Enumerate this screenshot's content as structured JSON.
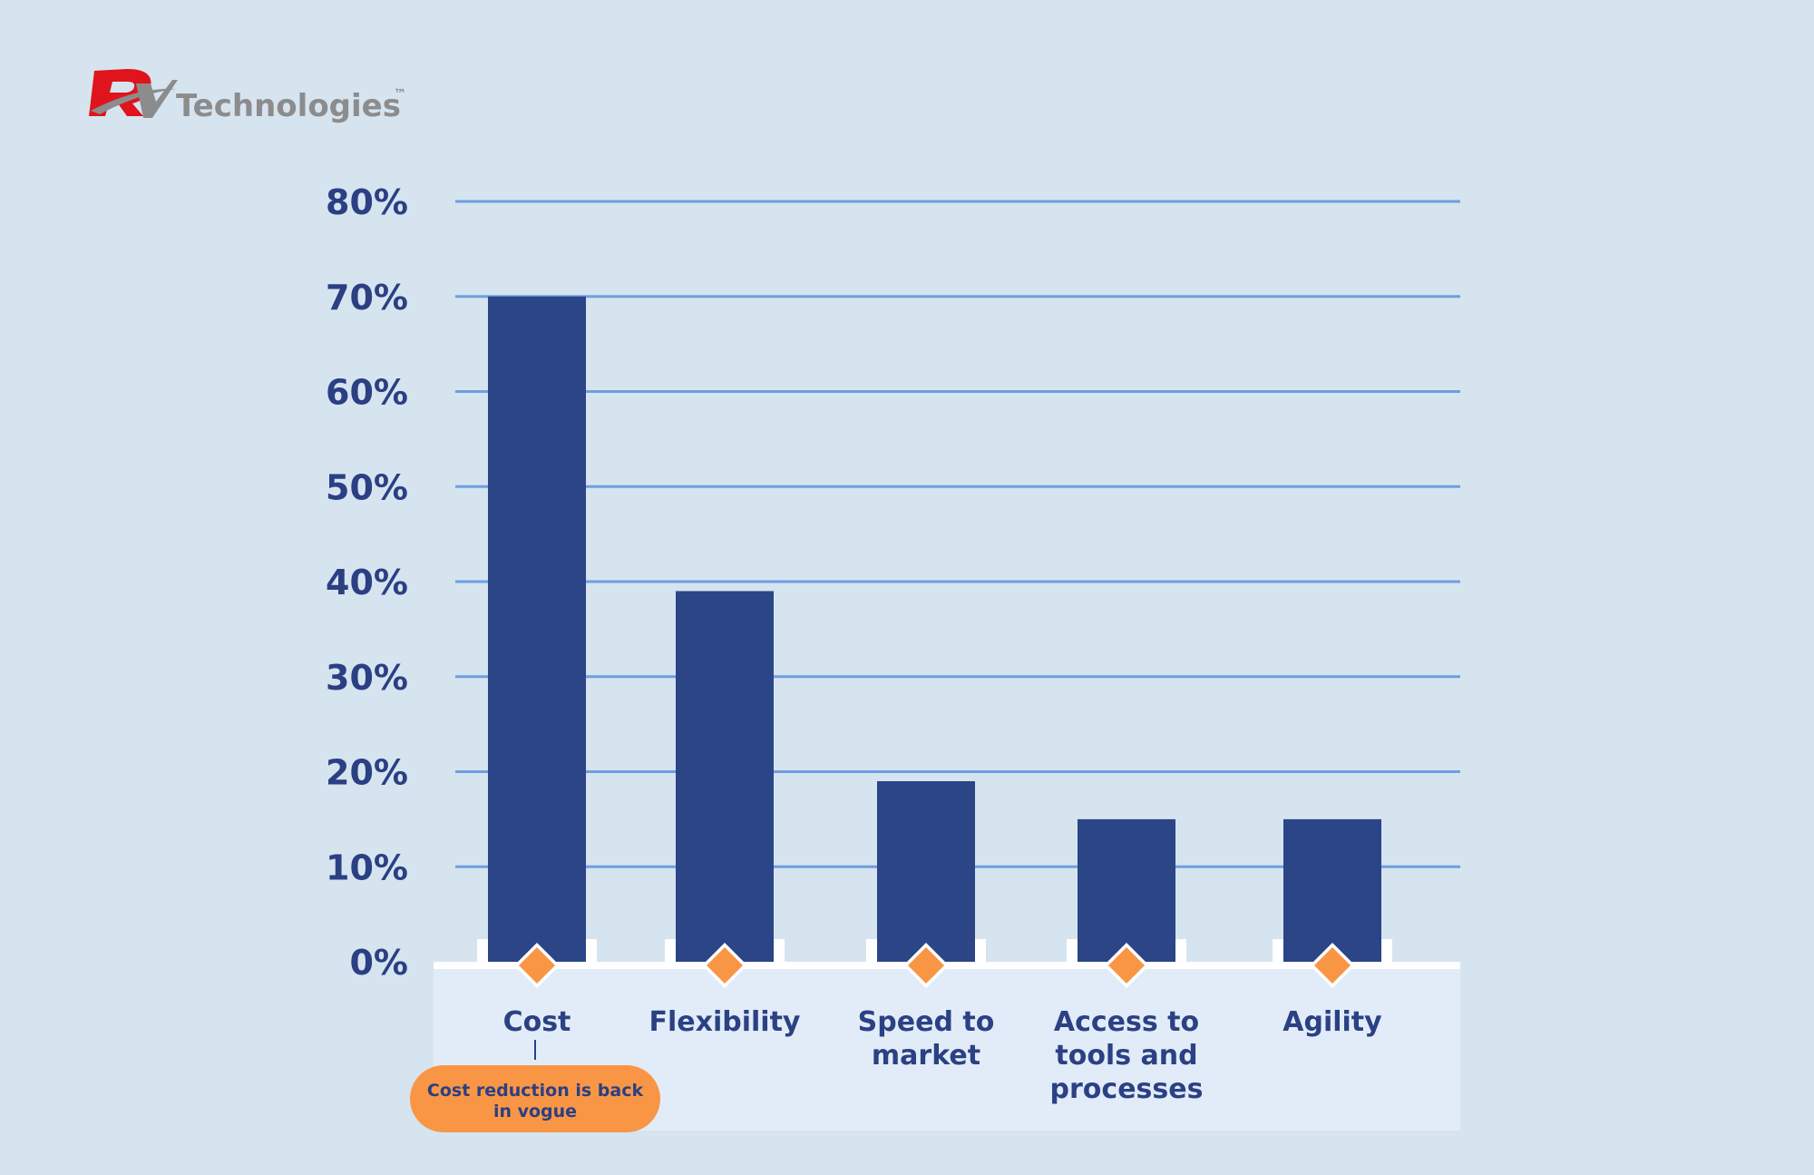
{
  "logo": {
    "text": "Technologies",
    "tm": "™",
    "mark": "RV"
  },
  "colors": {
    "background": "#d6e4f0",
    "bar": "#2b4587",
    "grid": "#6f9ee0",
    "axis_text": "#2b3f83",
    "marker": "#f99646",
    "callout": "#f99646",
    "label_panel": "#e2ecf8",
    "logo_red": "#e0141c",
    "logo_gray": "#8c8c8c"
  },
  "chart_data": {
    "type": "bar",
    "title": "",
    "xlabel": "",
    "ylabel": "",
    "categories": [
      "Cost",
      "Flexibility",
      "Speed to market",
      "Access to tools and processes",
      "Agility"
    ],
    "category_lines": [
      [
        "Cost"
      ],
      [
        "Flexibility"
      ],
      [
        "Speed to",
        "market"
      ],
      [
        "Access to",
        "tools and",
        "processes"
      ],
      [
        "Agility"
      ]
    ],
    "values": [
      70,
      39,
      19,
      15,
      15
    ],
    "ylim": [
      0,
      80
    ],
    "yticks": [
      0,
      10,
      20,
      30,
      40,
      50,
      60,
      70,
      80
    ],
    "ytick_labels": [
      "0%",
      "10%",
      "20%",
      "30%",
      "40%",
      "50%",
      "60%",
      "70%",
      "80%"
    ],
    "grid": true,
    "legend": "none",
    "annotations": [
      {
        "category": "Cost",
        "lines": [
          "Cost reduction is back",
          "in vogue"
        ]
      }
    ]
  }
}
